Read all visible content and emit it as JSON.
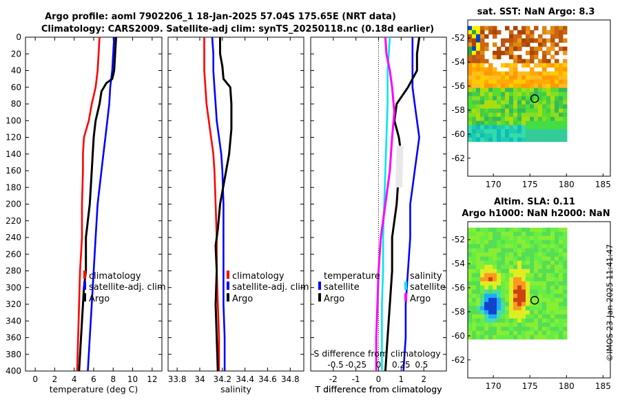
{
  "header": {
    "line1": "Argo profile: aoml 7902206_1 18-Jan-2025 57.04S 175.65E (NRT data)",
    "line2": "Climatology: CARS2009. Satellite-adj clim: synTS_20250118.nc (0.18d earlier)"
  },
  "copyright": "©IMOS 23-Jan-2025 11:41:47",
  "colors": {
    "climatology": "#ff0000",
    "satellite": "#0000ff",
    "argo": "#000000",
    "cyan": "#00e5ee",
    "magenta": "#ff00ff"
  },
  "depth_axis": {
    "ticks": [
      0,
      20,
      40,
      60,
      80,
      100,
      120,
      140,
      160,
      180,
      200,
      220,
      240,
      260,
      280,
      300,
      320,
      340,
      360,
      380,
      400
    ]
  },
  "chart_data": [
    {
      "type": "line",
      "id": "temperature",
      "xlabel": "temperature (deg C)",
      "xlim": [
        -1,
        13
      ],
      "xticks": [
        0,
        2,
        4,
        6,
        8,
        10,
        12
      ],
      "ylim": [
        0,
        400
      ],
      "legend": {
        "climatology": "climatology",
        "satellite": "satellite-adj. clim",
        "argo": "Argo"
      },
      "series": [
        {
          "name": "climatology",
          "color": "#ff0000",
          "points": [
            [
              6.6,
              0
            ],
            [
              6.5,
              20
            ],
            [
              6.4,
              40
            ],
            [
              6.2,
              60
            ],
            [
              5.8,
              80
            ],
            [
              5.5,
              100
            ],
            [
              5.0,
              120
            ],
            [
              4.9,
              140
            ],
            [
              4.9,
              160
            ],
            [
              4.8,
              200
            ],
            [
              4.8,
              240
            ],
            [
              4.6,
              280
            ],
            [
              4.5,
              320
            ],
            [
              4.4,
              360
            ],
            [
              4.3,
              400
            ]
          ]
        },
        {
          "name": "satellite",
          "color": "#0000ff",
          "points": [
            [
              8.1,
              0
            ],
            [
              8.0,
              20
            ],
            [
              7.9,
              40
            ],
            [
              7.7,
              60
            ],
            [
              7.6,
              80
            ],
            [
              7.4,
              100
            ],
            [
              7.2,
              120
            ],
            [
              7.0,
              140
            ],
            [
              6.8,
              160
            ],
            [
              6.6,
              180
            ],
            [
              6.4,
              200
            ],
            [
              6.2,
              240
            ],
            [
              6.0,
              280
            ],
            [
              5.8,
              320
            ],
            [
              5.6,
              360
            ],
            [
              5.4,
              400
            ]
          ]
        },
        {
          "name": "argo",
          "color": "#000000",
          "points": [
            [
              8.3,
              0
            ],
            [
              8.2,
              20
            ],
            [
              8.1,
              40
            ],
            [
              7.9,
              50
            ],
            [
              7.3,
              55
            ],
            [
              6.8,
              65
            ],
            [
              6.6,
              80
            ],
            [
              6.2,
              100
            ],
            [
              6.0,
              120
            ],
            [
              5.9,
              140
            ],
            [
              5.8,
              160
            ],
            [
              5.6,
              200
            ],
            [
              5.4,
              220
            ],
            [
              5.2,
              240
            ],
            [
              5.2,
              280
            ],
            [
              5.0,
              300
            ],
            [
              4.8,
              340
            ],
            [
              4.6,
              380
            ],
            [
              4.5,
              400
            ]
          ]
        }
      ]
    },
    {
      "type": "line",
      "id": "salinity",
      "xlabel": "salinity",
      "xlim": [
        33.72,
        34.92
      ],
      "xticks": [
        33.8,
        34,
        34.2,
        34.4,
        34.6,
        34.8
      ],
      "ylim": [
        0,
        400
      ],
      "legend": {
        "climatology": "climatology",
        "satellite": "satellite-adj. clim",
        "argo": "Argo"
      },
      "series": [
        {
          "name": "climatology",
          "color": "#ff0000",
          "points": [
            [
              34.04,
              0
            ],
            [
              34.04,
              20
            ],
            [
              34.04,
              40
            ],
            [
              34.05,
              60
            ],
            [
              34.06,
              80
            ],
            [
              34.08,
              100
            ],
            [
              34.1,
              120
            ],
            [
              34.12,
              140
            ],
            [
              34.13,
              160
            ],
            [
              34.14,
              200
            ],
            [
              34.15,
              240
            ],
            [
              34.15,
              280
            ],
            [
              34.16,
              320
            ],
            [
              34.17,
              360
            ],
            [
              34.17,
              400
            ]
          ]
        },
        {
          "name": "satellite",
          "color": "#0000ff",
          "points": [
            [
              34.11,
              0
            ],
            [
              34.12,
              20
            ],
            [
              34.12,
              40
            ],
            [
              34.13,
              60
            ],
            [
              34.14,
              80
            ],
            [
              34.15,
              100
            ],
            [
              34.17,
              120
            ],
            [
              34.19,
              140
            ],
            [
              34.2,
              160
            ],
            [
              34.21,
              200
            ],
            [
              34.21,
              240
            ],
            [
              34.21,
              280
            ],
            [
              34.21,
              320
            ],
            [
              34.22,
              360
            ],
            [
              34.22,
              400
            ]
          ]
        },
        {
          "name": "argo",
          "color": "#000000",
          "points": [
            [
              34.18,
              0
            ],
            [
              34.18,
              20
            ],
            [
              34.2,
              35
            ],
            [
              34.21,
              50
            ],
            [
              34.27,
              60
            ],
            [
              34.28,
              80
            ],
            [
              34.28,
              110
            ],
            [
              34.26,
              140
            ],
            [
              34.22,
              170
            ],
            [
              34.18,
              200
            ],
            [
              34.16,
              230
            ],
            [
              34.14,
              250
            ],
            [
              34.15,
              280
            ],
            [
              34.14,
              320
            ],
            [
              34.15,
              360
            ],
            [
              34.16,
              400
            ]
          ]
        }
      ]
    },
    {
      "type": "line",
      "id": "difference",
      "xlabel": "T difference from climatology",
      "x2label": "S difference from climatology",
      "xlim": [
        -3,
        3
      ],
      "xticks": [
        -2,
        -1,
        0,
        1,
        2
      ],
      "x2ticks": [
        "-0.5",
        "-0.25",
        "0",
        "0.25",
        "0.5"
      ],
      "ylim": [
        0,
        400
      ],
      "legend_left": {
        "title": "temperature",
        "satellite": "satellite",
        "argo": "Argo"
      },
      "legend_right": {
        "title": "salinity",
        "satellite": "satellite",
        "argo": "Argo"
      },
      "series": [
        {
          "name": "T satellite",
          "color": "#0000ff",
          "points": [
            [
              1.5,
              0
            ],
            [
              1.5,
              20
            ],
            [
              1.5,
              40
            ],
            [
              1.5,
              60
            ],
            [
              1.6,
              80
            ],
            [
              1.7,
              100
            ],
            [
              1.8,
              120
            ],
            [
              1.7,
              140
            ],
            [
              1.6,
              160
            ],
            [
              1.5,
              180
            ],
            [
              1.4,
              200
            ],
            [
              1.4,
              240
            ],
            [
              1.3,
              280
            ],
            [
              1.2,
              320
            ],
            [
              1.2,
              360
            ],
            [
              1.1,
              400
            ]
          ]
        },
        {
          "name": "T argo",
          "color": "#000000",
          "points": [
            [
              1.8,
              0
            ],
            [
              1.7,
              20
            ],
            [
              1.7,
              40
            ],
            [
              1.3,
              60
            ],
            [
              0.8,
              80
            ],
            [
              0.7,
              100
            ],
            [
              0.9,
              120
            ],
            [
              1.0,
              140
            ],
            [
              0.9,
              160
            ],
            [
              0.8,
              200
            ],
            [
              0.7,
              220
            ],
            [
              0.6,
              240
            ],
            [
              0.6,
              280
            ],
            [
              0.5,
              320
            ],
            [
              0.4,
              360
            ],
            [
              0.3,
              400
            ]
          ]
        },
        {
          "name": "S satellite",
          "color": "#00e5ee",
          "points": [
            [
              0.5,
              0
            ],
            [
              0.45,
              20
            ],
            [
              0.4,
              40
            ],
            [
              0.4,
              80
            ],
            [
              0.35,
              120
            ],
            [
              0.3,
              160
            ],
            [
              0.25,
              200
            ],
            [
              0.2,
              240
            ],
            [
              0.2,
              280
            ],
            [
              0.15,
              320
            ],
            [
              0.15,
              360
            ],
            [
              0.15,
              400
            ]
          ]
        },
        {
          "name": "S argo",
          "color": "#ff00ff",
          "points": [
            [
              0.3,
              0
            ],
            [
              0.35,
              20
            ],
            [
              0.5,
              40
            ],
            [
              0.6,
              60
            ],
            [
              0.7,
              90
            ],
            [
              0.6,
              120
            ],
            [
              0.5,
              160
            ],
            [
              0.3,
              200
            ],
            [
              0.1,
              240
            ],
            [
              0.0,
              280
            ],
            [
              -0.05,
              320
            ],
            [
              -0.1,
              360
            ],
            [
              -0.1,
              400
            ]
          ]
        }
      ]
    },
    {
      "type": "heatmap",
      "id": "sst-map",
      "title": "sat. SST: NaN Argo: 8.3",
      "xlim": [
        166.5,
        186
      ],
      "ylim": [
        -63.5,
        -50.5
      ],
      "xticks": [
        170,
        175,
        180,
        185
      ],
      "yticks": [
        -52,
        -54,
        -56,
        -58,
        -60,
        -62
      ],
      "data_xlim": [
        166.5,
        180
      ],
      "data_ylim": [
        -60.3,
        -51
      ],
      "argo_position": [
        175.65,
        -57.04
      ]
    },
    {
      "type": "heatmap",
      "id": "sla-map",
      "title": "Altim. SLA: 0.11",
      "subtitle": "Argo h1000: NaN h2000: NaN",
      "xlim": [
        166.5,
        186
      ],
      "ylim": [
        -63.5,
        -50.5
      ],
      "xticks": [
        170,
        175,
        180,
        185
      ],
      "yticks": [
        -52,
        -54,
        -56,
        -58,
        -60,
        -62
      ],
      "data_xlim": [
        166.5,
        180
      ],
      "data_ylim": [
        -60,
        -51
      ],
      "argo_position": [
        175.65,
        -57.04
      ]
    }
  ]
}
